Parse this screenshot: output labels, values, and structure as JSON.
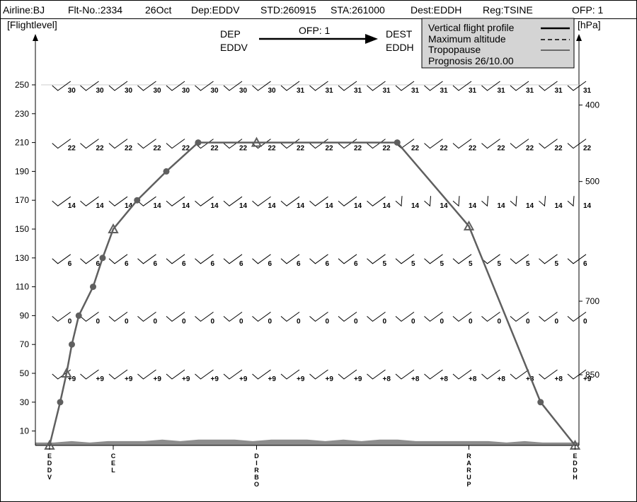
{
  "header": {
    "airline": "Airline:BJ",
    "flight": "Flt-No.:2334",
    "date": "26Oct",
    "dep": "Dep:EDDV",
    "std": "STD:260915",
    "sta": "STA:261000",
    "dest": "Dest:EDDH",
    "reg": "Reg:TSINE",
    "ofp": "OFP: 1"
  },
  "route_banner": {
    "dep_label": "DEP",
    "dep_code": "EDDV",
    "ofp": "OFP: 1",
    "dest_label": "DEST",
    "dest_code": "EDDH"
  },
  "legend": {
    "items": [
      {
        "label": "Vertical flight profile",
        "style": "solid-thick"
      },
      {
        "label": "Maximum altitude",
        "style": "dashed"
      },
      {
        "label": "Tropopause",
        "style": "solid-thin"
      }
    ],
    "prognosis": "Prognosis 26/10.00"
  },
  "colors": {
    "profile": "#5f5f5f",
    "terrain": "#8c8c8c",
    "marker": "#5f5f5f",
    "border": "#000000",
    "legend_bg": "#d4d4d4",
    "tropopause_line": "#cccccc"
  },
  "chart_data": {
    "type": "line",
    "title": "",
    "ylabel_left": "[Flightlevel]",
    "ylabel_right": "[hPa]",
    "ylim": [
      0,
      250
    ],
    "y_ticks": [
      10,
      30,
      50,
      70,
      90,
      110,
      130,
      150,
      170,
      190,
      210,
      230,
      250
    ],
    "pressure_ticks": [
      {
        "label": "400",
        "fl": 236
      },
      {
        "label": "500",
        "fl": 183
      },
      {
        "label": "700",
        "fl": 100
      },
      {
        "label": "850",
        "fl": 49
      }
    ],
    "x_range": [
      0,
      100
    ],
    "waypoints": [
      {
        "name": "EDDV",
        "x": 0
      },
      {
        "name": "CEL",
        "x": 12
      },
      {
        "name": "DIRBO",
        "x": 39
      },
      {
        "name": "RARUP",
        "x": 79
      },
      {
        "name": "EDDH",
        "x": 99
      }
    ],
    "profile": [
      {
        "x": 0,
        "fl": 0,
        "marker": "triangle"
      },
      {
        "x": 2,
        "fl": 30,
        "marker": "dot"
      },
      {
        "x": 3.2,
        "fl": 50,
        "marker": "triangle"
      },
      {
        "x": 4.2,
        "fl": 70,
        "marker": "dot"
      },
      {
        "x": 5.5,
        "fl": 90,
        "marker": "dot"
      },
      {
        "x": 8.2,
        "fl": 110,
        "marker": "dot"
      },
      {
        "x": 10,
        "fl": 130,
        "marker": "dot"
      },
      {
        "x": 12,
        "fl": 150,
        "marker": "triangle"
      },
      {
        "x": 16.5,
        "fl": 170,
        "marker": "dot"
      },
      {
        "x": 22,
        "fl": 190,
        "marker": "dot"
      },
      {
        "x": 28,
        "fl": 210,
        "marker": "dot"
      },
      {
        "x": 39,
        "fl": 210,
        "marker": "triangle"
      },
      {
        "x": 65.5,
        "fl": 210,
        "marker": "dot"
      },
      {
        "x": 79,
        "fl": 152,
        "marker": "triangle"
      },
      {
        "x": 92.5,
        "fl": 30,
        "marker": "dot"
      },
      {
        "x": 99,
        "fl": 0,
        "marker": "triangle"
      }
    ],
    "max_altitude_fl": 250,
    "wind_x": [
      0.5,
      5.8,
      11.2,
      16.6,
      22,
      27.4,
      32.8,
      38.2,
      43.6,
      49,
      54.4,
      59.8,
      65.2,
      70.6,
      76,
      81.4,
      86.8,
      92.2,
      97.6
    ],
    "wind_rows": [
      {
        "fl": 250,
        "labels": [
          "30",
          "30",
          "30",
          "30",
          "30",
          "30",
          "30",
          "30",
          "31",
          "31",
          "31",
          "31",
          "31",
          "31",
          "31",
          "31",
          "31",
          "31",
          "31"
        ]
      },
      {
        "fl": 210,
        "labels": [
          "22",
          "22",
          "22",
          "22",
          "22",
          "22",
          "22",
          "22",
          "22",
          "22",
          "22",
          "22",
          "22",
          "22",
          "22",
          "22",
          "22",
          "22",
          "22"
        ]
      },
      {
        "fl": 170,
        "labels": [
          "14",
          "14",
          "14",
          "14",
          "14",
          "14",
          "14",
          "14",
          "14",
          "14",
          "14",
          "14",
          "14",
          "14",
          "14",
          "14",
          "14",
          "14",
          "14"
        ]
      },
      {
        "fl": 130,
        "labels": [
          "6",
          "6",
          "6",
          "6",
          "6",
          "6",
          "6",
          "6",
          "6",
          "6",
          "6",
          "5",
          "5",
          "5",
          "5",
          "5",
          "5",
          "5",
          "6"
        ]
      },
      {
        "fl": 90,
        "labels": [
          "0",
          "0",
          "0",
          "0",
          "0",
          "0",
          "0",
          "0",
          "0",
          "0",
          "0",
          "0",
          "0",
          "0",
          "0",
          "0",
          "0",
          "0",
          "0"
        ]
      },
      {
        "fl": 50,
        "labels": [
          "+9",
          "+9",
          "+9",
          "+9",
          "+9",
          "+9",
          "+9",
          "+9",
          "+9",
          "+9",
          "+9",
          "+8",
          "+8",
          "+8",
          "+8",
          "+8",
          "+8",
          "+8",
          "+9"
        ]
      }
    ],
    "terrain_fl": [
      2,
      2,
      3,
      2,
      3,
      3,
      3,
      4,
      3,
      4,
      4,
      4,
      3,
      4,
      4,
      4,
      3,
      4,
      3,
      4,
      4,
      3,
      3,
      3,
      3,
      3,
      2,
      3,
      2,
      2,
      2
    ]
  }
}
